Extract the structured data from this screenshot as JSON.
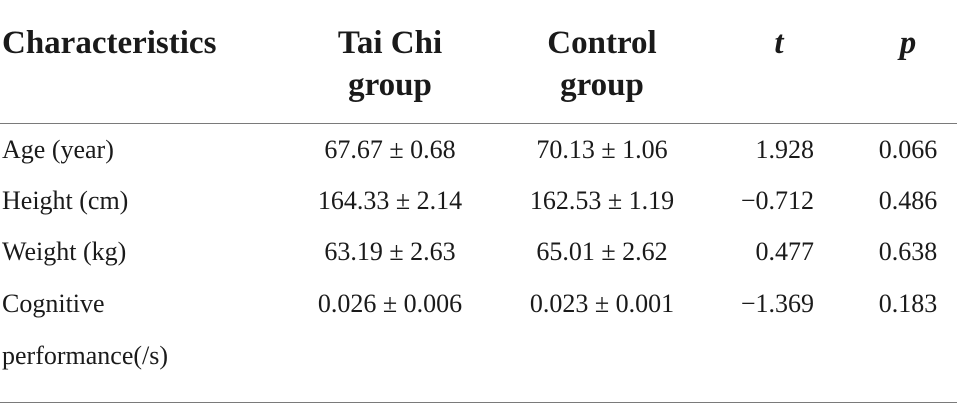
{
  "table": {
    "headers": {
      "characteristics": "Characteristics",
      "taichi_line1": "Tai Chi",
      "taichi_line2": "group",
      "control_line1": "Control",
      "control_line2": "group",
      "t": "t",
      "p": "p"
    },
    "rows": [
      {
        "label": "Age (year)",
        "taichi": "67.67 ± 0.68",
        "control": "70.13 ± 1.06",
        "t": "1.928",
        "p": "0.066"
      },
      {
        "label": "Height (cm)",
        "taichi": "164.33 ± 2.14",
        "control": "162.53 ± 1.19",
        "t": "−0.712",
        "p": "0.486"
      },
      {
        "label": "Weight (kg)",
        "taichi": "63.19 ± 2.63",
        "control": "65.01 ± 2.62",
        "t": "0.477",
        "p": "0.638"
      },
      {
        "label": "Cognitive",
        "label_line2": "performance(/s)",
        "taichi": "0.026 ± 0.006",
        "control": "0.023 ± 0.001",
        "t": "−1.369",
        "p": "0.183"
      }
    ]
  }
}
